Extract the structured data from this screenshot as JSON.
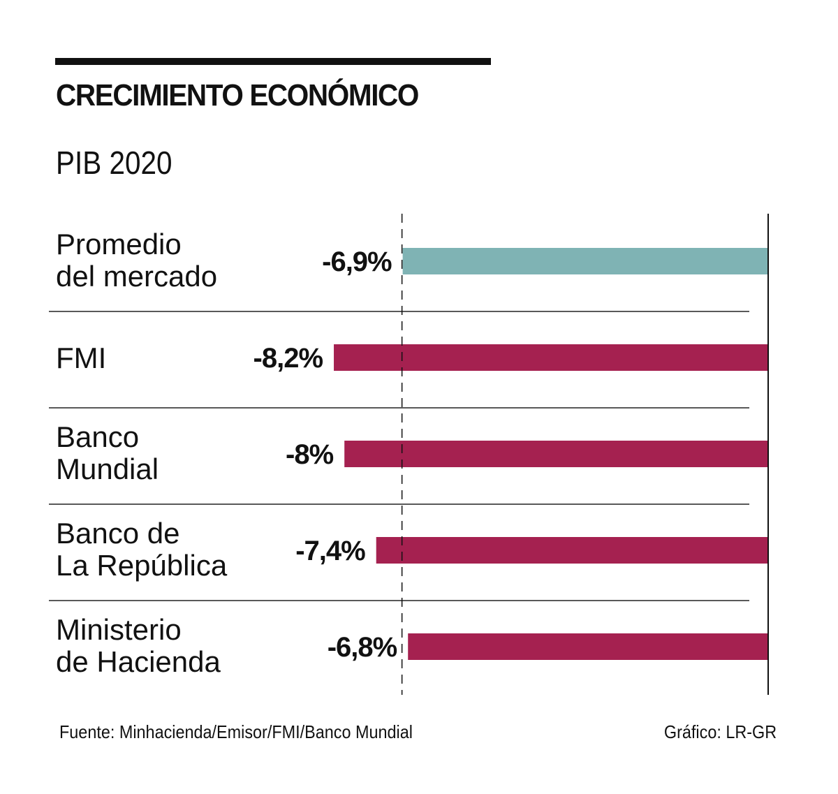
{
  "header": {
    "title": "CRECIMIENTO ECONÓMICO",
    "subtitle": "PIB 2020"
  },
  "footer": {
    "source": "Fuente: Minhacienda/Emisor/FMI/Banco Mundial",
    "credit": "Gráfico: LR-GR"
  },
  "colors": {
    "highlight": "#7fb3b4",
    "bar": "#a52150",
    "text": "#111111",
    "rule": "#222222"
  },
  "chart_data": {
    "type": "bar",
    "orientation": "horizontal",
    "title": "CRECIMIENTO ECONÓMICO",
    "subtitle": "PIB 2020",
    "xlabel": "",
    "ylabel": "",
    "unit": "%",
    "categories": [
      [
        "Promedio",
        "del mercado"
      ],
      [
        "FMI"
      ],
      [
        "Banco",
        "Mundial"
      ],
      [
        "Banco de",
        "La República"
      ],
      [
        "Ministerio",
        "de Hacienda"
      ]
    ],
    "values": [
      -6.9,
      -8.2,
      -8.0,
      -7.4,
      -6.8
    ],
    "value_labels": [
      "-6,9%",
      "-8,2%",
      "-8%",
      "-7,4%",
      "-6,8%"
    ],
    "highlighted_index": 0,
    "reference_line": {
      "value": -6.9,
      "style": "dashed"
    },
    "zero_axis": true,
    "xlim": [
      -8.2,
      0
    ],
    "grid": false,
    "legend": "none"
  }
}
